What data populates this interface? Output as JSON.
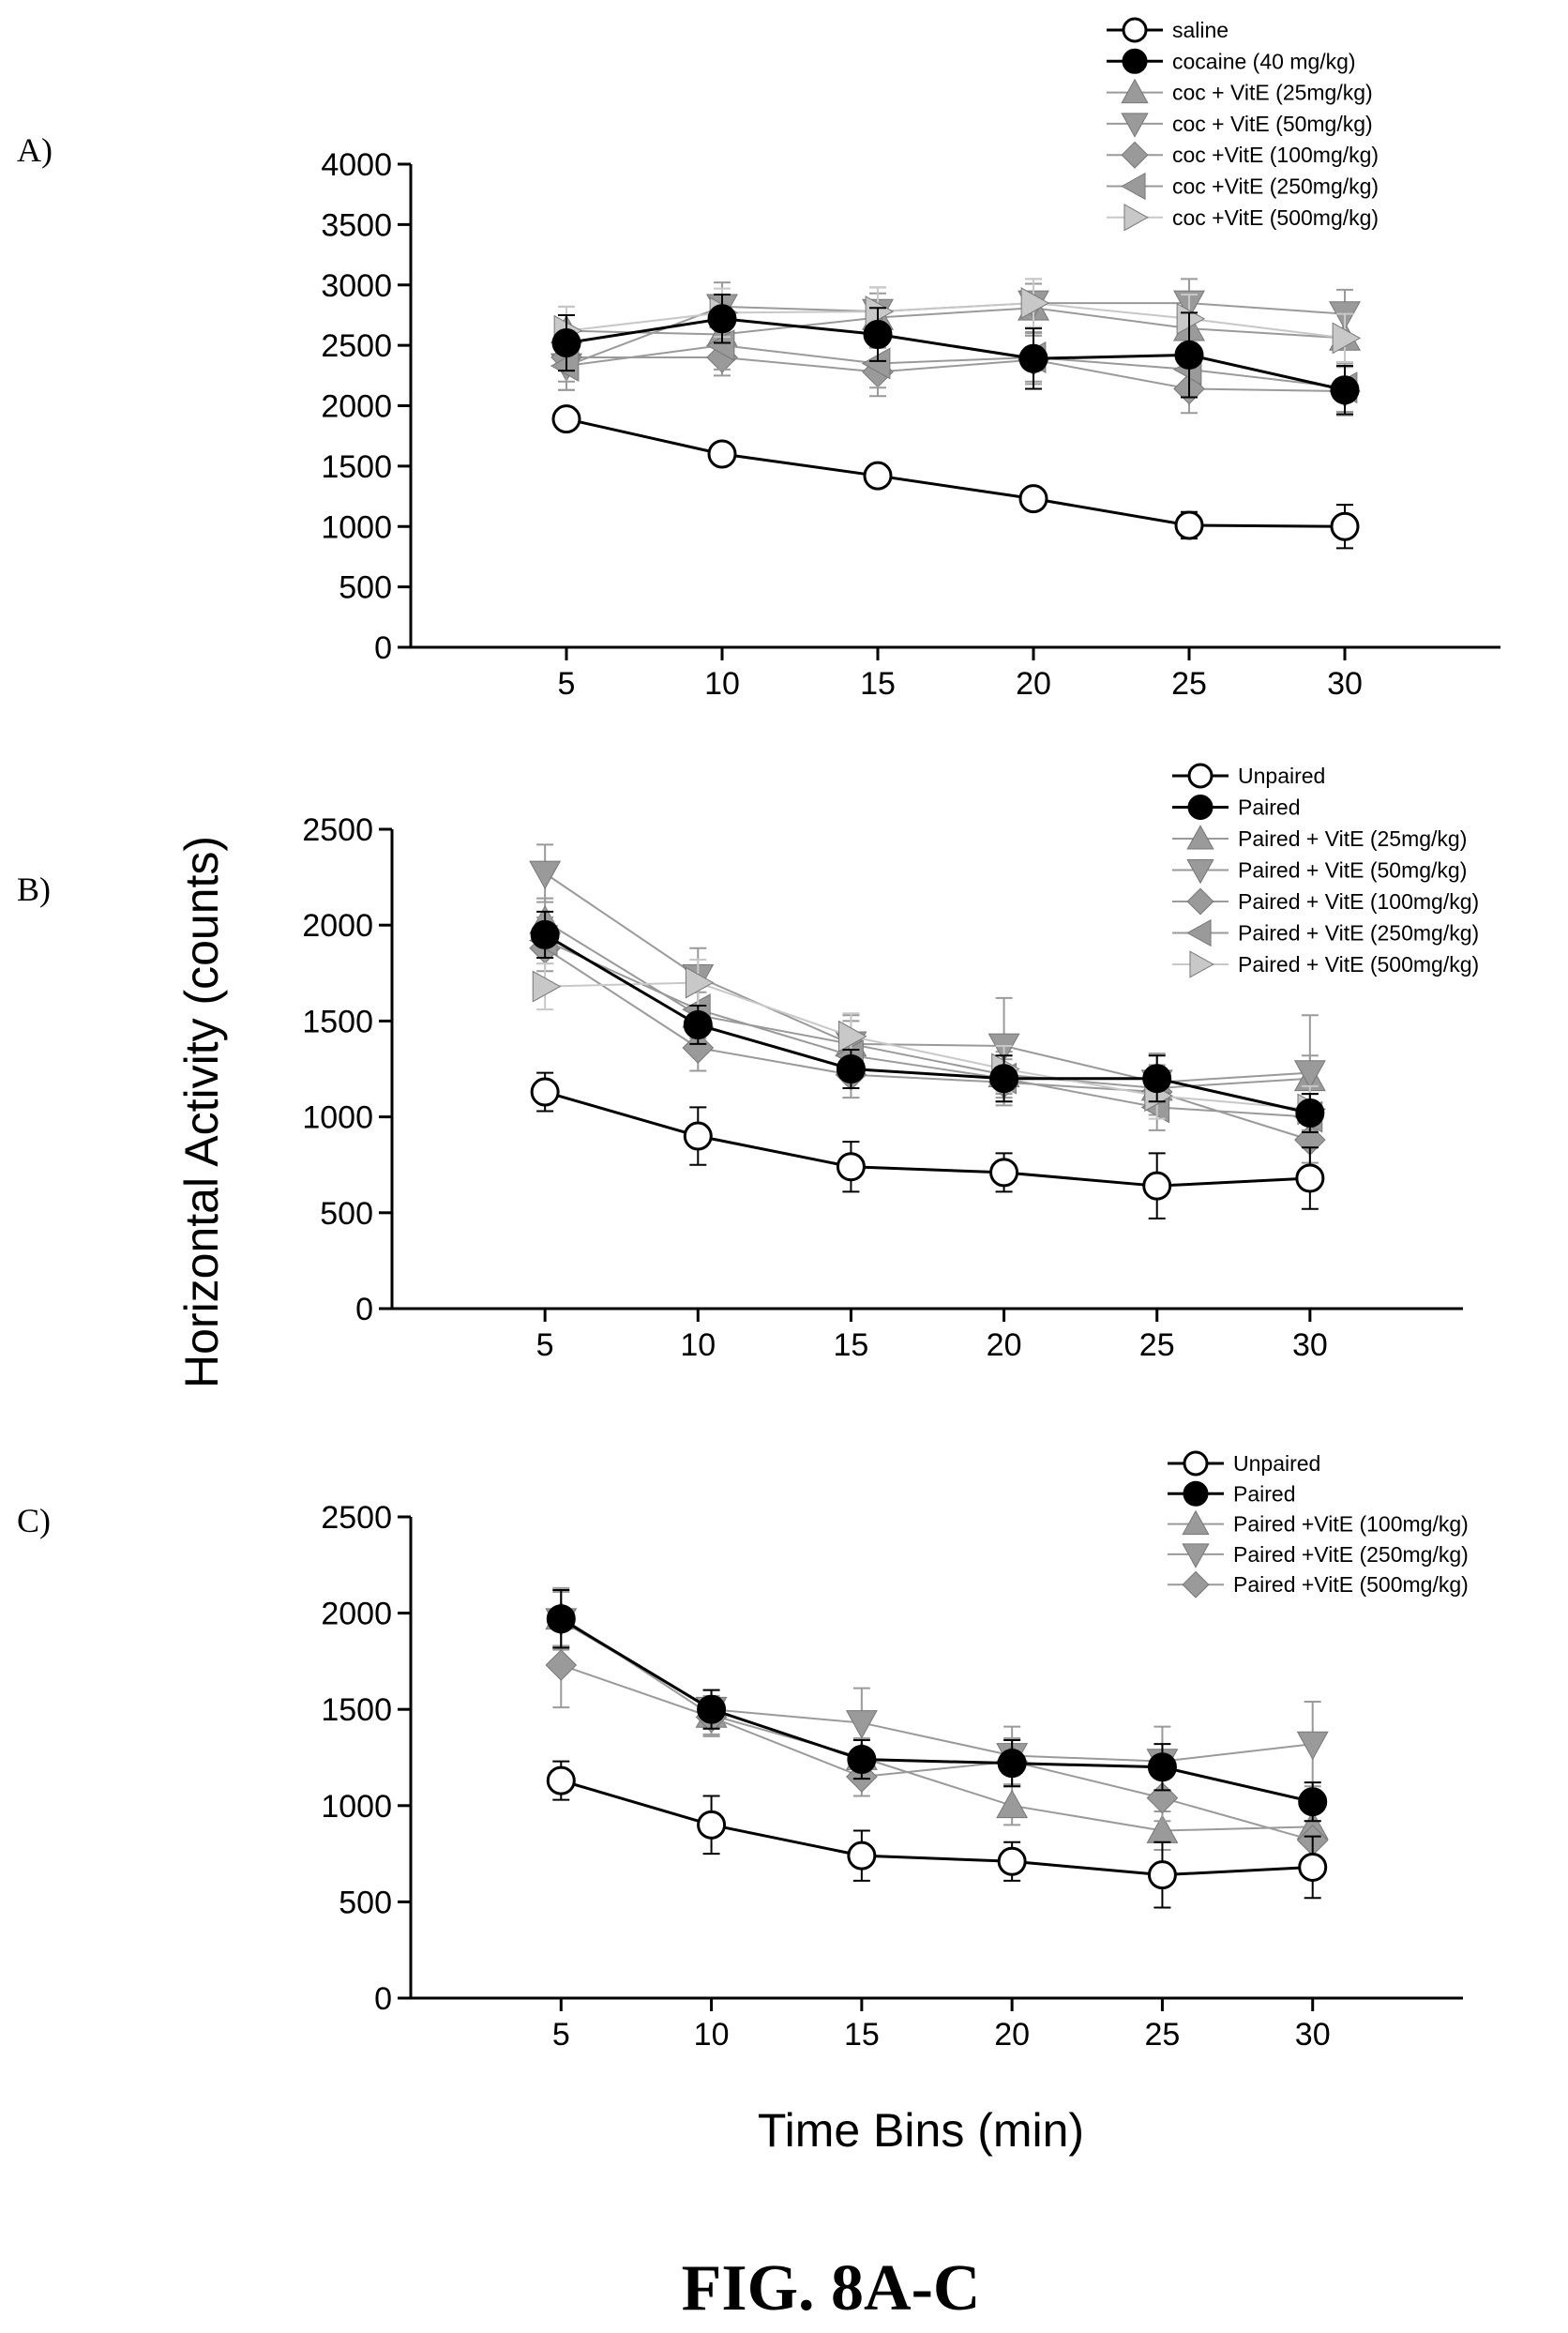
{
  "figure": {
    "caption": "FIG. 8A-C",
    "ylabel": "Horizontal Activity (counts)",
    "xlabel": "Time Bins (min)"
  },
  "colors": {
    "dark": "#000000",
    "gray": "#9a9a9a",
    "light": "#c8c8c8",
    "white": "#ffffff"
  },
  "chart_data": [
    {
      "type": "line",
      "panel_label": "A)",
      "x": [
        5,
        10,
        15,
        20,
        25,
        30
      ],
      "xlim": [
        0,
        35
      ],
      "ylim": [
        0,
        4000
      ],
      "yticks": [
        0,
        500,
        1000,
        1500,
        2000,
        2500,
        3000,
        3500,
        4000
      ],
      "xticks": [
        5,
        10,
        15,
        20,
        25,
        30
      ],
      "legend_position": "top-right",
      "series": [
        {
          "name": "saline",
          "marker": "circle-open",
          "color": "#000000",
          "values": [
            1890,
            1600,
            1420,
            1230,
            1010,
            1000
          ],
          "errors": [
            80,
            60,
            60,
            80,
            110,
            180
          ]
        },
        {
          "name": "cocaine (40 mg/kg)",
          "marker": "circle-filled",
          "color": "#000000",
          "values": [
            2520,
            2720,
            2590,
            2390,
            2420,
            2130
          ],
          "errors": [
            230,
            200,
            220,
            250,
            350,
            200
          ]
        },
        {
          "name": "coc + VitE (25mg/kg)",
          "marker": "triangle-up",
          "color": "#9a9a9a",
          "values": [
            2620,
            2590,
            2730,
            2810,
            2640,
            2560
          ],
          "errors": [
            200,
            200,
            200,
            200,
            250,
            200
          ]
        },
        {
          "name": "coc + VitE (50mg/kg)",
          "marker": "triangle-down",
          "color": "#9a9a9a",
          "values": [
            2330,
            2820,
            2780,
            2850,
            2850,
            2760
          ],
          "errors": [
            200,
            200,
            200,
            200,
            200,
            200
          ]
        },
        {
          "name": "coc +VitE (100mg/kg)",
          "marker": "diamond",
          "color": "#9a9a9a",
          "values": [
            2400,
            2400,
            2280,
            2380,
            2140,
            2120
          ],
          "errors": [
            200,
            150,
            200,
            200,
            200,
            200
          ]
        },
        {
          "name": "coc +VitE (250mg/kg)",
          "marker": "triangle-left",
          "color": "#9a9a9a",
          "values": [
            2330,
            2500,
            2350,
            2400,
            2300,
            2150
          ],
          "errors": [
            200,
            200,
            200,
            200,
            200,
            200
          ]
        },
        {
          "name": "coc +VitE (500mg/kg)",
          "marker": "triangle-right",
          "color": "#c8c8c8",
          "values": [
            2620,
            2770,
            2780,
            2850,
            2720,
            2560
          ],
          "errors": [
            200,
            200,
            200,
            200,
            200,
            200
          ]
        }
      ]
    },
    {
      "type": "line",
      "panel_label": "B)",
      "x": [
        5,
        10,
        15,
        20,
        25,
        30
      ],
      "xlim": [
        0,
        35
      ],
      "ylim": [
        0,
        2500
      ],
      "yticks": [
        0,
        500,
        1000,
        1500,
        2000,
        2500
      ],
      "xticks": [
        5,
        10,
        15,
        20,
        25,
        30
      ],
      "legend_position": "top-right",
      "series": [
        {
          "name": "Unpaired",
          "marker": "circle-open",
          "color": "#000000",
          "values": [
            1130,
            900,
            740,
            710,
            640,
            680
          ],
          "errors": [
            100,
            150,
            130,
            100,
            170,
            160
          ]
        },
        {
          "name": "Paired",
          "marker": "circle-filled",
          "color": "#000000",
          "values": [
            1950,
            1480,
            1250,
            1200,
            1200,
            1020
          ],
          "errors": [
            120,
            100,
            100,
            120,
            120,
            100
          ]
        },
        {
          "name": "Paired + VitE (25mg/kg)",
          "marker": "triangle-up",
          "color": "#9a9a9a",
          "values": [
            2020,
            1530,
            1380,
            1220,
            1150,
            1200
          ],
          "errors": [
            120,
            120,
            120,
            120,
            120,
            120
          ]
        },
        {
          "name": "Paired + VitE (50mg/kg)",
          "marker": "triangle-down",
          "color": "#9a9a9a",
          "values": [
            2270,
            1730,
            1380,
            1370,
            1180,
            1230
          ],
          "errors": [
            150,
            150,
            150,
            250,
            150,
            300
          ]
        },
        {
          "name": "Paired + VitE (100mg/kg)",
          "marker": "diamond",
          "color": "#9a9a9a",
          "values": [
            1880,
            1360,
            1220,
            1180,
            1130,
            880
          ],
          "errors": [
            120,
            120,
            120,
            120,
            120,
            120
          ]
        },
        {
          "name": "Paired + VitE (250mg/kg)",
          "marker": "triangle-left",
          "color": "#9a9a9a",
          "values": [
            1920,
            1560,
            1320,
            1200,
            1050,
            1000
          ],
          "errors": [
            120,
            120,
            120,
            120,
            120,
            120
          ]
        },
        {
          "name": "Paired + VitE (500mg/kg)",
          "marker": "triangle-right",
          "color": "#c8c8c8",
          "values": [
            1680,
            1700,
            1420,
            1250,
            1110,
            1040
          ],
          "errors": [
            120,
            120,
            120,
            120,
            120,
            120
          ]
        }
      ]
    },
    {
      "type": "line",
      "panel_label": "C)",
      "x": [
        5,
        10,
        15,
        20,
        25,
        30
      ],
      "xlim": [
        0,
        35
      ],
      "ylim": [
        0,
        2500
      ],
      "yticks": [
        0,
        500,
        1000,
        1500,
        2000,
        2500
      ],
      "xticks": [
        5,
        10,
        15,
        20,
        25,
        30
      ],
      "legend_position": "top-right",
      "series": [
        {
          "name": "Unpaired",
          "marker": "circle-open",
          "color": "#000000",
          "values": [
            1130,
            900,
            740,
            710,
            640,
            680
          ],
          "errors": [
            100,
            150,
            130,
            100,
            170,
            160
          ]
        },
        {
          "name": "Paired",
          "marker": "circle-filled",
          "color": "#000000",
          "values": [
            1970,
            1500,
            1240,
            1220,
            1200,
            1020
          ],
          "errors": [
            150,
            100,
            100,
            120,
            120,
            100
          ]
        },
        {
          "name": "Paired +VitE (100mg/kg)",
          "marker": "triangle-up",
          "color": "#9a9a9a",
          "values": [
            1980,
            1470,
            1250,
            1000,
            870,
            890
          ],
          "errors": [
            150,
            100,
            100,
            100,
            100,
            100
          ]
        },
        {
          "name": "Paired +VitE (250mg/kg)",
          "marker": "triangle-down",
          "color": "#9a9a9a",
          "values": [
            1960,
            1500,
            1430,
            1260,
            1230,
            1320
          ],
          "errors": [
            150,
            100,
            180,
            150,
            180,
            220
          ]
        },
        {
          "name": "Paired +VitE (500mg/kg)",
          "marker": "diamond",
          "color": "#9a9a9a",
          "values": [
            1730,
            1460,
            1150,
            1230,
            1040,
            820
          ],
          "errors": [
            220,
            100,
            100,
            120,
            120,
            100
          ]
        }
      ]
    }
  ]
}
